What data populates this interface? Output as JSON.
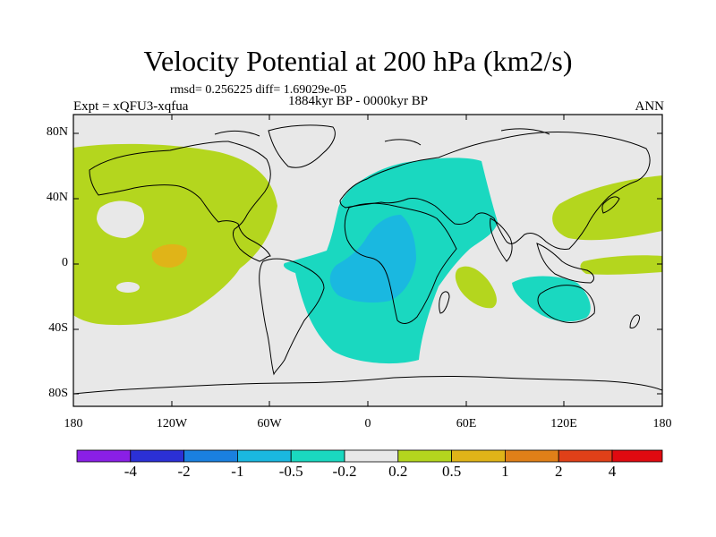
{
  "header": {
    "title": "Velocity Potential at 200 hPa (km2/s)",
    "stats": "rmsd= 0.256225 diff= 1.69029e-05",
    "period": "1884kyr BP - 0000kyr BP",
    "experiment": "Expt = xQFU3-xqfua",
    "season": "ANN"
  },
  "axes": {
    "y_ticks": [
      "80N",
      "40N",
      "0",
      "40S",
      "80S"
    ],
    "x_ticks": [
      "180",
      "120W",
      "60W",
      "0",
      "60E",
      "120E",
      "180"
    ]
  },
  "colorbar": {
    "labels": [
      "-4",
      "-2",
      "-1",
      "-0.5",
      "-0.2",
      "0.2",
      "0.5",
      "1",
      "2",
      "4"
    ],
    "colors": [
      "#8a1fe6",
      "#2b30d6",
      "#1a80e0",
      "#1ab8e0",
      "#1ad8c0",
      "#e8e8e8",
      "#b4d61e",
      "#e0b418",
      "#e08018",
      "#e04018",
      "#e00a10"
    ]
  },
  "field_colors": {
    "background": "#e8e8e8",
    "positive_weak": "#b4d61e",
    "positive_mid": "#e0b418",
    "negative_weak": "#1ad8c0",
    "negative_mid": "#1ab8e0"
  }
}
